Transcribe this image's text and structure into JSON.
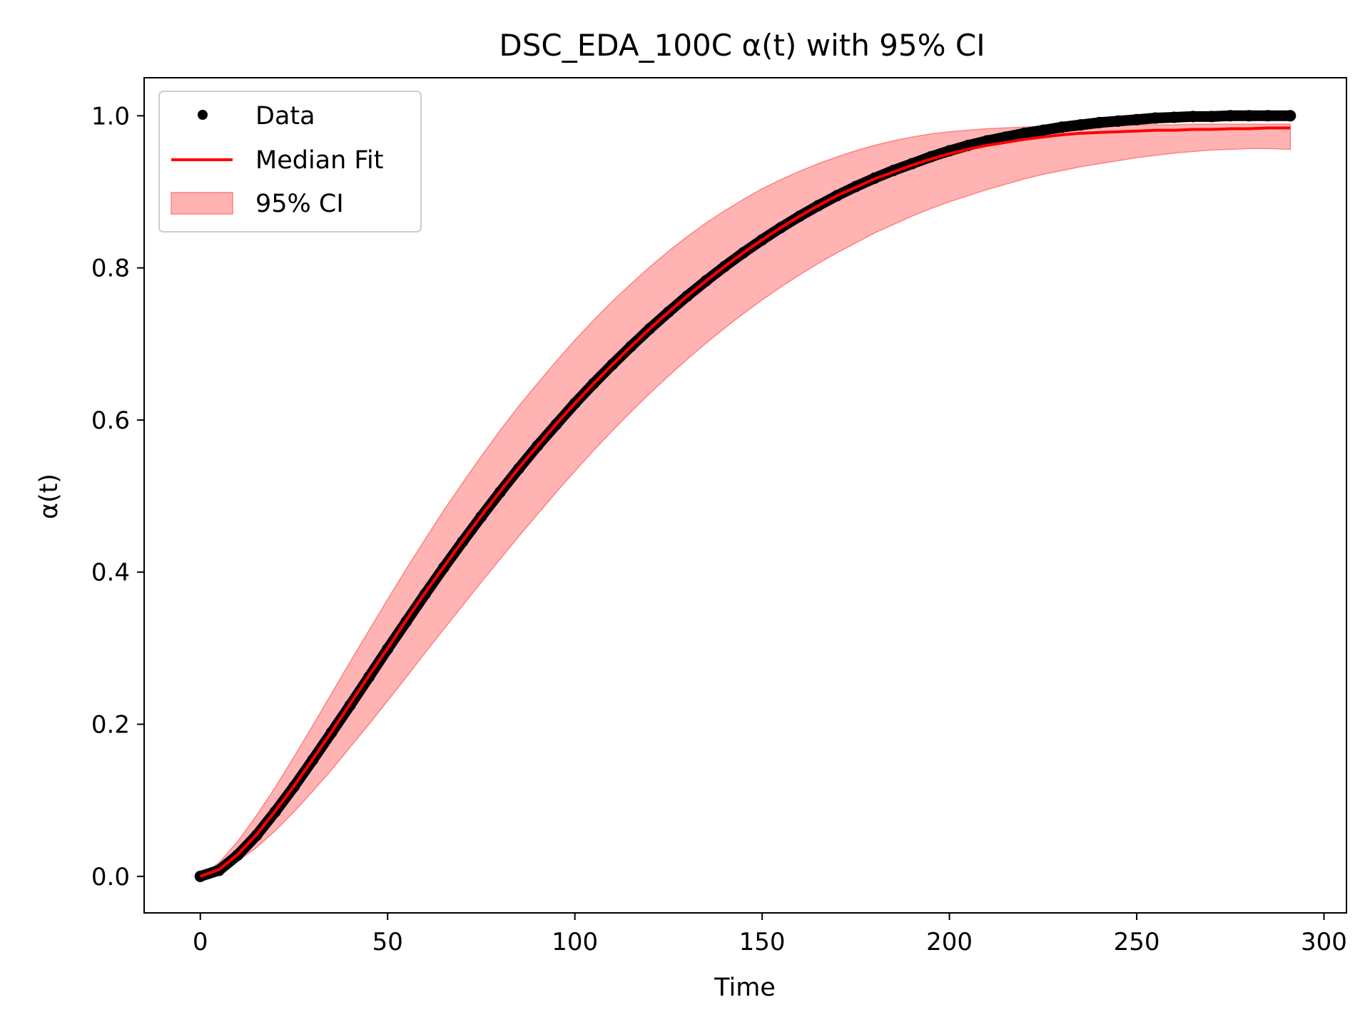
{
  "chart_data": {
    "type": "line",
    "title": "DSC_EDA_100C α(t) with 95% CI",
    "xlabel": "Time",
    "ylabel": "α(t)",
    "xlim": [
      -15,
      306
    ],
    "ylim": [
      -0.048,
      1.05
    ],
    "x_ticks": [
      0,
      50,
      100,
      150,
      200,
      250,
      300
    ],
    "y_ticks": [
      0.0,
      0.2,
      0.4,
      0.6,
      0.8,
      1.0
    ],
    "x_tick_labels": [
      "0",
      "50",
      "100",
      "150",
      "200",
      "250",
      "300"
    ],
    "y_tick_labels": [
      "0.0",
      "0.2",
      "0.4",
      "0.6",
      "0.8",
      "1.0"
    ],
    "grid": false,
    "legend_position": "top-left",
    "legend": [
      "Data",
      "Median Fit",
      "95% CI"
    ],
    "colors": {
      "data": "#000000",
      "fit": "#ff0000",
      "ci_fill": "#ffb3b3",
      "ci_edge": "#ff8080"
    },
    "series": [
      {
        "name": "Data",
        "kind": "scatter",
        "x": [
          0,
          5,
          10,
          15,
          20,
          25,
          30,
          35,
          40,
          45,
          50,
          55,
          60,
          65,
          70,
          75,
          80,
          85,
          90,
          95,
          100,
          105,
          110,
          115,
          120,
          125,
          130,
          135,
          140,
          145,
          150,
          155,
          160,
          165,
          170,
          175,
          180,
          185,
          190,
          195,
          200,
          205,
          210,
          215,
          220,
          225,
          230,
          235,
          240,
          245,
          250,
          255,
          260,
          265,
          270,
          275,
          280,
          285,
          291
        ],
        "y": [
          0.0,
          0.008,
          0.028,
          0.054,
          0.085,
          0.118,
          0.153,
          0.189,
          0.225,
          0.262,
          0.299,
          0.335,
          0.371,
          0.406,
          0.44,
          0.473,
          0.505,
          0.536,
          0.566,
          0.594,
          0.622,
          0.648,
          0.673,
          0.697,
          0.72,
          0.742,
          0.763,
          0.783,
          0.802,
          0.82,
          0.837,
          0.853,
          0.868,
          0.882,
          0.895,
          0.907,
          0.918,
          0.928,
          0.937,
          0.946,
          0.954,
          0.961,
          0.967,
          0.972,
          0.977,
          0.981,
          0.985,
          0.988,
          0.991,
          0.993,
          0.995,
          0.997,
          0.998,
          0.999,
          0.999,
          1.0,
          1.0,
          1.0,
          1.0
        ]
      },
      {
        "name": "Median Fit",
        "kind": "line",
        "x": [
          0,
          5,
          10,
          15,
          20,
          25,
          30,
          35,
          40,
          45,
          50,
          55,
          60,
          65,
          70,
          75,
          80,
          85,
          90,
          95,
          100,
          105,
          110,
          115,
          120,
          125,
          130,
          135,
          140,
          145,
          150,
          155,
          160,
          165,
          170,
          175,
          180,
          185,
          190,
          195,
          200,
          205,
          210,
          215,
          220,
          225,
          230,
          235,
          240,
          245,
          250,
          255,
          260,
          265,
          270,
          275,
          280,
          285,
          291
        ],
        "y": [
          0.0,
          0.009,
          0.029,
          0.055,
          0.086,
          0.119,
          0.154,
          0.19,
          0.227,
          0.264,
          0.3,
          0.337,
          0.373,
          0.407,
          0.441,
          0.474,
          0.506,
          0.537,
          0.566,
          0.595,
          0.622,
          0.648,
          0.673,
          0.697,
          0.72,
          0.742,
          0.763,
          0.783,
          0.802,
          0.82,
          0.837,
          0.853,
          0.868,
          0.882,
          0.895,
          0.906,
          0.917,
          0.926,
          0.935,
          0.943,
          0.95,
          0.956,
          0.961,
          0.965,
          0.969,
          0.972,
          0.975,
          0.977,
          0.978,
          0.979,
          0.98,
          0.981,
          0.981,
          0.982,
          0.982,
          0.983,
          0.983,
          0.984,
          0.984
        ]
      },
      {
        "name": "95% CI",
        "kind": "band",
        "x": [
          0,
          5,
          10,
          15,
          20,
          25,
          30,
          35,
          40,
          45,
          50,
          55,
          60,
          65,
          70,
          75,
          80,
          85,
          90,
          95,
          100,
          105,
          110,
          115,
          120,
          125,
          130,
          135,
          140,
          145,
          150,
          155,
          160,
          165,
          170,
          175,
          180,
          185,
          190,
          195,
          200,
          205,
          210,
          215,
          220,
          225,
          230,
          235,
          240,
          245,
          250,
          255,
          260,
          265,
          270,
          275,
          280,
          285,
          291
        ],
        "lower": [
          0.0,
          0.006,
          0.02,
          0.038,
          0.06,
          0.085,
          0.112,
          0.14,
          0.17,
          0.2,
          0.231,
          0.262,
          0.294,
          0.325,
          0.356,
          0.387,
          0.417,
          0.447,
          0.476,
          0.505,
          0.533,
          0.56,
          0.586,
          0.611,
          0.635,
          0.658,
          0.68,
          0.701,
          0.721,
          0.74,
          0.758,
          0.775,
          0.791,
          0.806,
          0.82,
          0.833,
          0.846,
          0.857,
          0.868,
          0.878,
          0.887,
          0.895,
          0.903,
          0.91,
          0.917,
          0.923,
          0.928,
          0.933,
          0.937,
          0.941,
          0.945,
          0.948,
          0.951,
          0.953,
          0.955,
          0.956,
          0.957,
          0.957,
          0.956
        ],
        "upper": [
          0.0,
          0.018,
          0.046,
          0.08,
          0.117,
          0.157,
          0.198,
          0.24,
          0.282,
          0.323,
          0.364,
          0.404,
          0.443,
          0.481,
          0.517,
          0.552,
          0.586,
          0.618,
          0.648,
          0.677,
          0.705,
          0.731,
          0.756,
          0.779,
          0.801,
          0.822,
          0.841,
          0.859,
          0.875,
          0.89,
          0.904,
          0.916,
          0.927,
          0.937,
          0.946,
          0.954,
          0.961,
          0.967,
          0.972,
          0.976,
          0.979,
          0.981,
          0.983,
          0.984,
          0.985,
          0.986,
          0.987,
          0.987,
          0.988,
          0.988,
          0.988,
          0.988,
          0.988,
          0.989,
          0.989,
          0.989,
          0.989,
          0.989,
          0.989
        ]
      }
    ]
  }
}
